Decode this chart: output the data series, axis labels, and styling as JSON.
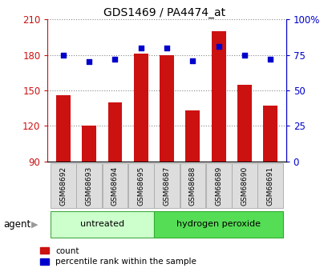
{
  "title": "GDS1469 / PA4474_at",
  "samples": [
    "GSM68692",
    "GSM68693",
    "GSM68694",
    "GSM68695",
    "GSM68687",
    "GSM68688",
    "GSM68689",
    "GSM68690",
    "GSM68691"
  ],
  "counts": [
    146,
    120,
    140,
    181,
    180,
    133,
    200,
    155,
    137
  ],
  "percentiles": [
    75,
    70,
    72,
    80,
    80,
    71,
    81,
    75,
    72
  ],
  "groups": [
    {
      "label": "untreated",
      "start": 0,
      "end": 4,
      "color": "#ccffcc",
      "border": "#44aa44"
    },
    {
      "label": "hydrogen peroxide",
      "start": 4,
      "end": 9,
      "color": "#55dd55",
      "border": "#33aa33"
    }
  ],
  "ylim_left": [
    90,
    210
  ],
  "ylim_right": [
    0,
    100
  ],
  "yticks_left": [
    90,
    120,
    150,
    180,
    210
  ],
  "yticks_right": [
    0,
    25,
    50,
    75,
    100
  ],
  "ytick_labels_left": [
    "90",
    "120",
    "150",
    "180",
    "210"
  ],
  "ytick_labels_right": [
    "0",
    "25",
    "50",
    "75",
    "100%"
  ],
  "bar_color": "#cc1111",
  "dot_color": "#0000cc",
  "bar_bottom": 90,
  "grid_color": "#888888",
  "bg_color": "#ffffff",
  "plot_bg": "#ffffff",
  "agent_label": "agent",
  "legend_count": "count",
  "legend_percentile": "percentile rank within the sample",
  "sample_box_color": "#dddddd",
  "sample_box_border": "#aaaaaa"
}
